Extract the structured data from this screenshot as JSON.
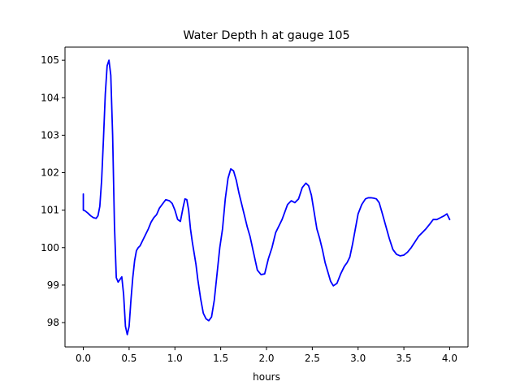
{
  "chart_data": {
    "type": "line",
    "title": "Water Depth h at gauge 105",
    "xlabel": "hours",
    "ylabel": "",
    "xlim": [
      -0.2,
      4.2
    ],
    "ylim": [
      97.35,
      105.35
    ],
    "xticks": [
      0.0,
      0.5,
      1.0,
      1.5,
      2.0,
      2.5,
      3.0,
      3.5,
      4.0
    ],
    "xtick_labels": [
      "0.0",
      "0.5",
      "1.0",
      "1.5",
      "2.0",
      "2.5",
      "3.0",
      "3.5",
      "4.0"
    ],
    "yticks": [
      98,
      99,
      100,
      101,
      102,
      103,
      104,
      105
    ],
    "ytick_labels": [
      "98",
      "99",
      "100",
      "101",
      "102",
      "103",
      "104",
      "105"
    ],
    "grid": false,
    "legend": "none",
    "series": [
      {
        "color": "#0000ff",
        "x": [
          0.0,
          0.0,
          0.0,
          0.02,
          0.05,
          0.08,
          0.11,
          0.14,
          0.16,
          0.18,
          0.2,
          0.22,
          0.24,
          0.26,
          0.28,
          0.3,
          0.32,
          0.34,
          0.36,
          0.38,
          0.4,
          0.42,
          0.44,
          0.46,
          0.48,
          0.5,
          0.52,
          0.54,
          0.56,
          0.58,
          0.6,
          0.62,
          0.65,
          0.68,
          0.71,
          0.74,
          0.77,
          0.8,
          0.83,
          0.86,
          0.9,
          0.94,
          0.97,
          1.0,
          1.03,
          1.06,
          1.09,
          1.11,
          1.13,
          1.15,
          1.17,
          1.19,
          1.21,
          1.23,
          1.25,
          1.28,
          1.31,
          1.34,
          1.37,
          1.4,
          1.43,
          1.46,
          1.49,
          1.52,
          1.55,
          1.58,
          1.61,
          1.64,
          1.67,
          1.7,
          1.72,
          1.74,
          1.76,
          1.79,
          1.82,
          1.86,
          1.9,
          1.94,
          1.98,
          2.02,
          2.06,
          2.1,
          2.14,
          2.17,
          2.2,
          2.23,
          2.27,
          2.31,
          2.35,
          2.39,
          2.43,
          2.46,
          2.49,
          2.51,
          2.53,
          2.55,
          2.58,
          2.61,
          2.64,
          2.67,
          2.7,
          2.73,
          2.77,
          2.81,
          2.85,
          2.88,
          2.91,
          2.94,
          2.97,
          3.0,
          3.04,
          3.08,
          3.11,
          3.14,
          3.17,
          3.2,
          3.23,
          3.26,
          3.3,
          3.34,
          3.38,
          3.42,
          3.46,
          3.5,
          3.54,
          3.58,
          3.62,
          3.66,
          3.7,
          3.74,
          3.78,
          3.82,
          3.86,
          3.9,
          3.94,
          3.97,
          4.0
        ],
        "y": [
          101.43,
          101.15,
          101.0,
          100.98,
          100.92,
          100.85,
          100.8,
          100.78,
          100.85,
          101.1,
          101.8,
          102.9,
          104.1,
          104.85,
          105.0,
          104.6,
          103.0,
          100.6,
          99.2,
          99.08,
          99.15,
          99.22,
          98.75,
          97.9,
          97.68,
          97.9,
          98.6,
          99.2,
          99.65,
          99.92,
          100.0,
          100.05,
          100.2,
          100.35,
          100.5,
          100.68,
          100.8,
          100.88,
          101.05,
          101.15,
          101.28,
          101.25,
          101.18,
          101.0,
          100.75,
          100.7,
          101.08,
          101.3,
          101.28,
          101.0,
          100.5,
          100.15,
          99.85,
          99.55,
          99.15,
          98.65,
          98.25,
          98.1,
          98.05,
          98.15,
          98.6,
          99.3,
          100.0,
          100.5,
          101.3,
          101.85,
          102.1,
          102.05,
          101.8,
          101.45,
          101.25,
          101.05,
          100.85,
          100.55,
          100.3,
          99.85,
          99.4,
          99.28,
          99.3,
          99.7,
          100.0,
          100.4,
          100.6,
          100.75,
          100.95,
          101.15,
          101.25,
          101.2,
          101.3,
          101.6,
          101.72,
          101.65,
          101.4,
          101.1,
          100.8,
          100.5,
          100.25,
          99.95,
          99.6,
          99.35,
          99.1,
          98.98,
          99.05,
          99.3,
          99.5,
          99.6,
          99.75,
          100.1,
          100.5,
          100.9,
          101.15,
          101.3,
          101.33,
          101.33,
          101.32,
          101.3,
          101.2,
          100.95,
          100.6,
          100.25,
          99.95,
          99.82,
          99.78,
          99.8,
          99.88,
          100.0,
          100.15,
          100.3,
          100.4,
          100.5,
          100.62,
          100.75,
          100.75,
          100.8,
          100.85,
          100.9,
          100.75
        ]
      }
    ]
  }
}
